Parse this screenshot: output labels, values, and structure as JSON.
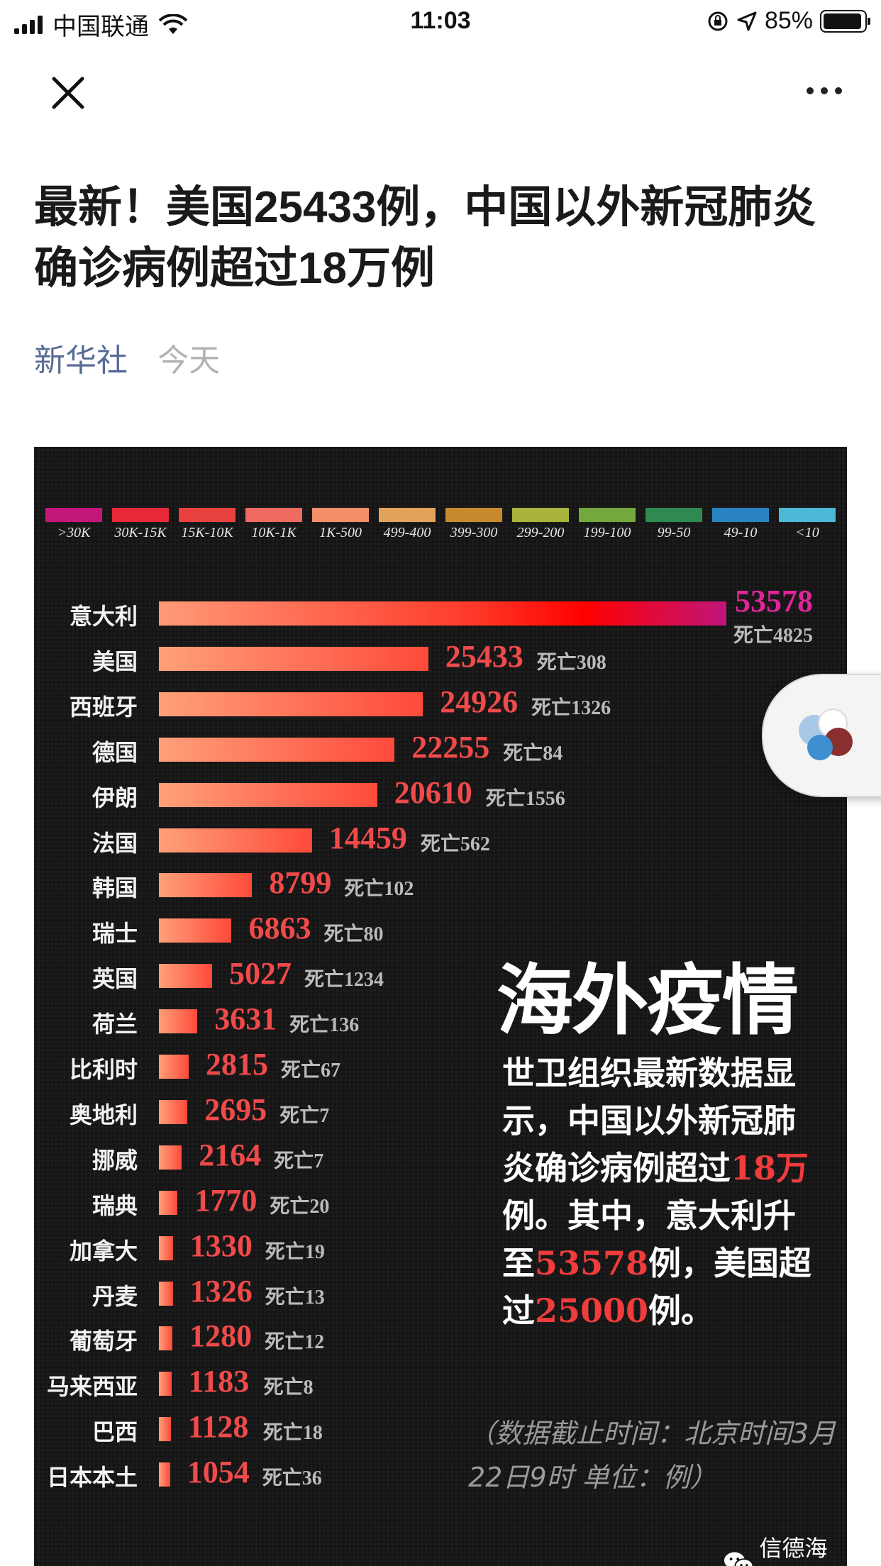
{
  "status_bar": {
    "carrier": "中国联通",
    "time": "11:03",
    "battery_percent": "85%"
  },
  "nav": {
    "close_icon": "close-icon",
    "more_icon": "more-icon"
  },
  "article": {
    "title": "最新！美国25433例，中国以外新冠肺炎确诊病例超过18万例",
    "source": "新华社",
    "date": "今天"
  },
  "infographic": {
    "legend": [
      {
        "label": ">30K",
        "color": "#c2187a"
      },
      {
        "label": "30K-15K",
        "color": "#e8293a"
      },
      {
        "label": "15K-10K",
        "color": "#e8413f"
      },
      {
        "label": "10K-1K",
        "color": "#ef6a61"
      },
      {
        "label": "1K-500",
        "color": "#f48f6a"
      },
      {
        "label": "499-400",
        "color": "#e3a25a"
      },
      {
        "label": "399-300",
        "color": "#c98a2e"
      },
      {
        "label": "299-200",
        "color": "#a8b43a"
      },
      {
        "label": "199-100",
        "color": "#73a83e"
      },
      {
        "label": "99-50",
        "color": "#2f8a52"
      },
      {
        "label": "49-10",
        "color": "#2a83c2"
      },
      {
        "label": "<10",
        "color": "#4bb8d6"
      }
    ],
    "chart_data": {
      "type": "bar",
      "categories": [
        "意大利",
        "美国",
        "西班牙",
        "德国",
        "伊朗",
        "法国",
        "韩国",
        "瑞士",
        "英国",
        "荷兰",
        "比利时",
        "奥地利",
        "挪威",
        "瑞典",
        "加拿大",
        "丹麦",
        "葡萄牙",
        "马来西亚",
        "巴西",
        "日本本土"
      ],
      "values": [
        53578,
        25433,
        24926,
        22255,
        20610,
        14459,
        8799,
        6863,
        5027,
        3631,
        2815,
        2695,
        2164,
        1770,
        1330,
        1326,
        1280,
        1183,
        1128,
        1054
      ],
      "deaths": [
        "死亡4825",
        "死亡308",
        "死亡1326",
        "死亡84",
        "死亡1556",
        "死亡562",
        "死亡102",
        "死亡80",
        "死亡1234",
        "死亡136",
        "死亡67",
        "死亡7",
        "死亡7",
        "死亡20",
        "死亡19",
        "死亡13",
        "死亡12",
        "死亡8",
        "死亡18",
        "死亡36"
      ]
    },
    "headline": "海外疫情",
    "desc": {
      "p1": "世卫组织最新数据显示，中国以外新冠肺炎确诊病例超过",
      "h1": "18万",
      "p2": "例。其中，意大利升至",
      "h2": "53578",
      "p3": "例，美国超过",
      "h3": "25000",
      "p4": "例。"
    },
    "note": "（数据截止时间：北京时间3月22日9时 单位：例）",
    "watermark": "信德海事"
  }
}
